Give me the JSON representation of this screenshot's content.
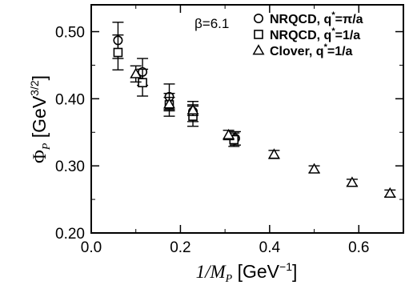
{
  "chart_data": {
    "type": "scatter",
    "annotation": "β=6.1",
    "xlabel": {
      "main": "1/M",
      "sub": "P",
      "unit_open": " [GeV",
      "sup": "−1",
      "unit_close": "]"
    },
    "ylabel": {
      "main": "Φ",
      "sub": "P",
      "unit_open": " [GeV",
      "sup": "3/2",
      "unit_close": "]"
    },
    "xlim": [
      0.0,
      0.7
    ],
    "ylim": [
      0.2,
      0.54
    ],
    "x_ticks": [
      {
        "value": 0.0,
        "label": "0.0"
      },
      {
        "value": 0.2,
        "label": "0.2"
      },
      {
        "value": 0.4,
        "label": "0.4"
      },
      {
        "value": 0.6,
        "label": "0.6"
      }
    ],
    "y_ticks": [
      {
        "value": 0.2,
        "label": "0.20"
      },
      {
        "value": 0.3,
        "label": "0.30"
      },
      {
        "value": 0.4,
        "label": "0.40"
      },
      {
        "value": 0.5,
        "label": "0.50"
      }
    ],
    "legend_position": "top-right",
    "series": [
      {
        "name": "NRQCD, q*=π/a",
        "legend": {
          "prefix": "NRQCD, q",
          "star": "*",
          "suffix": "=π/a"
        },
        "marker": "circle",
        "points": [
          {
            "x": 0.06,
            "y": 0.487,
            "err": 0.027
          },
          {
            "x": 0.115,
            "y": 0.44,
            "err": 0.02
          },
          {
            "x": 0.175,
            "y": 0.403,
            "err": 0.019
          },
          {
            "x": 0.228,
            "y": 0.381,
            "err": 0.015
          },
          {
            "x": 0.323,
            "y": 0.341,
            "err": 0.01
          }
        ]
      },
      {
        "name": "NRQCD, q*=1/a",
        "legend": {
          "prefix": "NRQCD, q",
          "star": "*",
          "suffix": "=1/a"
        },
        "marker": "square",
        "points": [
          {
            "x": 0.06,
            "y": 0.469,
            "err": 0.026
          },
          {
            "x": 0.115,
            "y": 0.424,
            "err": 0.02
          },
          {
            "x": 0.175,
            "y": 0.391,
            "err": 0.017
          },
          {
            "x": 0.228,
            "y": 0.374,
            "err": 0.015
          },
          {
            "x": 0.32,
            "y": 0.339,
            "err": 0.01
          }
        ]
      },
      {
        "name": "Clover, q*=1/a",
        "legend": {
          "prefix": "Clover, q",
          "star": "*",
          "suffix": "=1/a"
        },
        "marker": "triangle",
        "points": [
          {
            "x": 0.1,
            "y": 0.437,
            "err": 0.012
          },
          {
            "x": 0.175,
            "y": 0.392,
            "err": 0.01
          },
          {
            "x": 0.228,
            "y": 0.383,
            "err": 0.008
          },
          {
            "x": 0.308,
            "y": 0.346,
            "err": 0.007
          },
          {
            "x": 0.41,
            "y": 0.317,
            "err": 0.006
          },
          {
            "x": 0.5,
            "y": 0.295,
            "err": 0.005
          },
          {
            "x": 0.585,
            "y": 0.275,
            "err": 0.005
          },
          {
            "x": 0.67,
            "y": 0.259,
            "err": 0.005
          }
        ]
      }
    ]
  }
}
